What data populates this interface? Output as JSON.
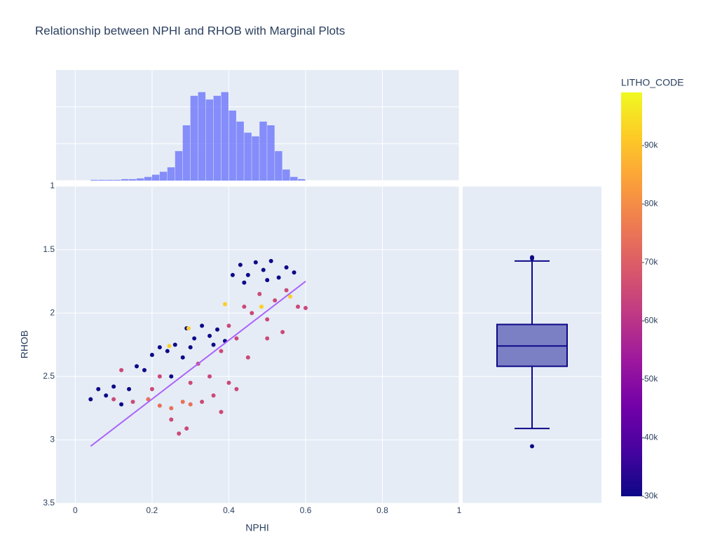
{
  "chart_data": {
    "type": "scatter",
    "title": "Relationship between NPHI and RHOB with Marginal Plots",
    "x_label": "NPHI",
    "y_label": "RHOB",
    "xlim": [
      -0.05,
      1.0
    ],
    "xticks": [
      0,
      0.2,
      0.4,
      0.6,
      0.8,
      1
    ],
    "ylim": [
      3.5,
      1
    ],
    "yticks": [
      1,
      1.5,
      2,
      2.5,
      3,
      3.5
    ],
    "y_reversed": true,
    "grid": true,
    "x": [
      0.43,
      0.45,
      0.47,
      0.49,
      0.51,
      0.53,
      0.55,
      0.44,
      0.5,
      0.57,
      0.41,
      0.29,
      0.31,
      0.33,
      0.35,
      0.37,
      0.39,
      0.3,
      0.36,
      0.18,
      0.2,
      0.22,
      0.24,
      0.26,
      0.28,
      0.16,
      0.25,
      0.04,
      0.06,
      0.08,
      0.1,
      0.12,
      0.14,
      0.32,
      0.35,
      0.38,
      0.4,
      0.42,
      0.44,
      0.46,
      0.48,
      0.5,
      0.52,
      0.55,
      0.58,
      0.6,
      0.45,
      0.4,
      0.36,
      0.33,
      0.38,
      0.42,
      0.3,
      0.5,
      0.54,
      0.27,
      0.25,
      0.29,
      0.2,
      0.22,
      0.1,
      0.15,
      0.12,
      0.22,
      0.25,
      0.28,
      0.3,
      0.19,
      0.245,
      0.295,
      0.39,
      0.485,
      0.56
    ],
    "y": [
      1.62,
      1.7,
      1.6,
      1.66,
      1.59,
      1.72,
      1.64,
      1.76,
      1.74,
      1.68,
      1.7,
      2.12,
      2.2,
      2.1,
      2.18,
      2.13,
      2.22,
      2.27,
      2.25,
      2.45,
      2.33,
      2.27,
      2.3,
      2.25,
      2.35,
      2.42,
      2.5,
      2.68,
      2.6,
      2.65,
      2.58,
      2.72,
      2.6,
      2.4,
      2.5,
      2.3,
      2.1,
      2.2,
      1.95,
      2.0,
      1.85,
      2.05,
      1.9,
      1.82,
      1.95,
      1.96,
      2.35,
      2.55,
      2.65,
      2.7,
      2.78,
      2.6,
      2.55,
      2.2,
      2.15,
      2.95,
      2.84,
      2.91,
      2.6,
      2.5,
      2.68,
      2.7,
      2.45,
      2.73,
      2.75,
      2.7,
      2.72,
      2.68,
      2.26,
      2.12,
      1.93,
      1.95,
      1.87
    ],
    "color_values": [
      30000,
      30000,
      30000,
      30000,
      30000,
      30000,
      30000,
      30000,
      30000,
      30000,
      30000,
      30000,
      30000,
      30000,
      30000,
      30000,
      30000,
      30000,
      30000,
      30000,
      30000,
      30000,
      30000,
      30000,
      30000,
      30000,
      30000,
      30000,
      30000,
      30000,
      30000,
      30000,
      30000,
      65000,
      65000,
      65000,
      65000,
      65000,
      65000,
      65000,
      65000,
      65000,
      65000,
      65000,
      65000,
      65000,
      65000,
      65000,
      65000,
      65000,
      65000,
      65000,
      65000,
      65000,
      65000,
      65000,
      65000,
      65000,
      65000,
      65000,
      65000,
      65000,
      65000,
      74000,
      74000,
      74000,
      74000,
      74000,
      92000,
      92000,
      92000,
      92000,
      92000
    ],
    "colorscale": [
      "#0d0887",
      "#46039f",
      "#7201a8",
      "#9c179e",
      "#bd3786",
      "#d8576b",
      "#ed7953",
      "#fb9f3a",
      "#fdca26",
      "#f0f921"
    ],
    "colorbar": {
      "title": "LITHO_CODE",
      "lim": [
        30000,
        99100
      ],
      "ticks": [
        {
          "value": 30000,
          "label": "30k"
        },
        {
          "value": 40000,
          "label": "40k"
        },
        {
          "value": 50000,
          "label": "50k"
        },
        {
          "value": 60000,
          "label": "60k"
        },
        {
          "value": 70000,
          "label": "70k"
        },
        {
          "value": 80000,
          "label": "80k"
        },
        {
          "value": 90000,
          "label": "90k"
        }
      ]
    },
    "trendline": {
      "color": "#ab63fa",
      "x": [
        0.04,
        0.6
      ],
      "y": [
        3.05,
        1.75
      ]
    },
    "marginal_x": {
      "type": "histogram",
      "color": "#636efa",
      "bins": [
        0.04,
        0.06,
        0.08,
        0.1,
        0.12,
        0.14,
        0.16,
        0.18,
        0.2,
        0.22,
        0.24,
        0.26,
        0.28,
        0.3,
        0.32,
        0.34,
        0.36,
        0.38,
        0.4,
        0.42,
        0.44,
        0.46,
        0.48,
        0.5,
        0.52,
        0.54,
        0.56,
        0.58,
        0.6
      ],
      "counts": [
        1,
        1,
        1,
        1,
        2,
        2,
        3,
        5,
        8,
        12,
        18,
        40,
        75,
        115,
        120,
        110,
        115,
        120,
        95,
        80,
        65,
        60,
        80,
        75,
        40,
        15,
        5,
        2
      ],
      "ylim": [
        0,
        150
      ],
      "yticks": [
        0,
        50,
        100
      ]
    },
    "marginal_y": {
      "type": "box",
      "color": "#0d0887",
      "fill": "#7b7fc4",
      "q1": 2.09,
      "median": 2.26,
      "q3": 2.42,
      "upperfence": 1.59,
      "lowerfence": 2.91,
      "outliers": [
        1.56,
        1.57,
        3.05
      ]
    }
  }
}
